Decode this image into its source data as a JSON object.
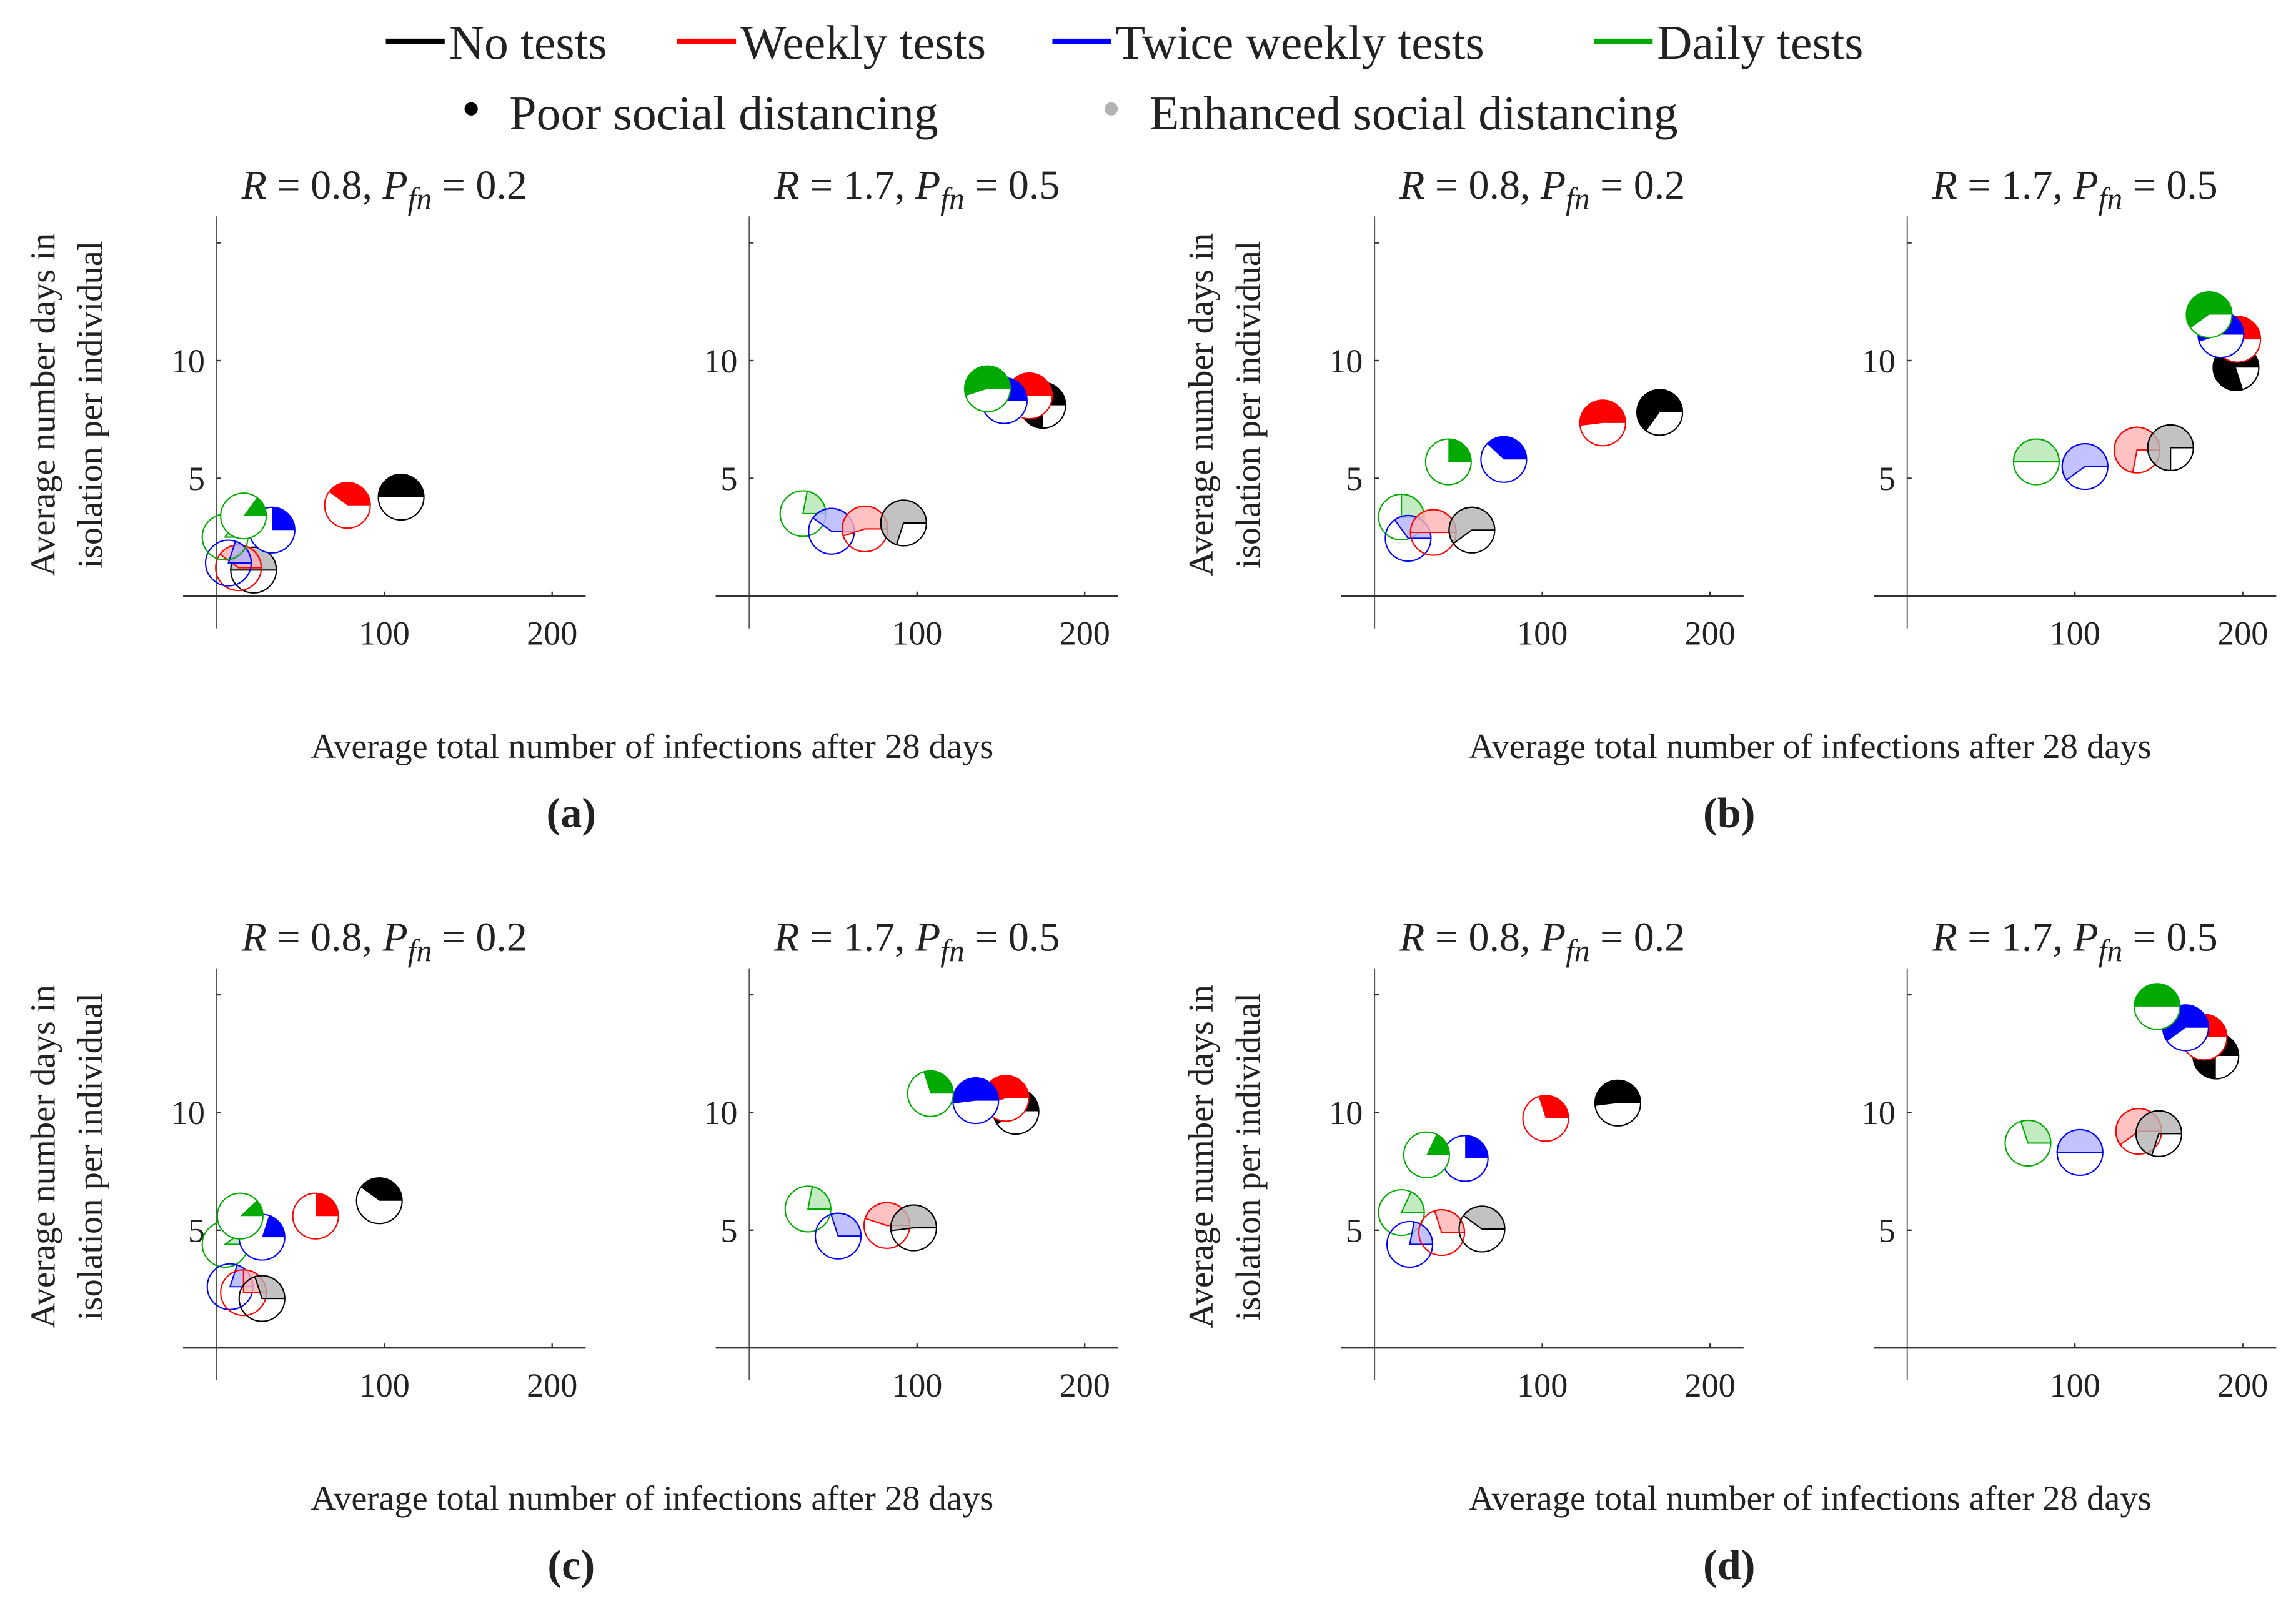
{
  "legend": {
    "tests": [
      {
        "label": "No tests",
        "color": "#000000"
      },
      {
        "label": "Weekly tests",
        "color": "#ff0000"
      },
      {
        "label": "Twice weekly tests",
        "color": "#0000ff"
      },
      {
        "label": "Daily tests",
        "color": "#00aa00"
      }
    ],
    "distancing": [
      {
        "label": "Poor social distancing",
        "color": "#000000"
      },
      {
        "label": "Enhanced social distancing",
        "color": "#b3b3b3"
      }
    ]
  },
  "light_colors": {
    "No tests": "#b3b3b3",
    "Weekly tests": "#ffb3b3",
    "Twice weekly tests": "#b3b3ff",
    "Daily tests": "#b3e6b3"
  },
  "chart_data": [
    {
      "label": "(a)",
      "xlabel": "Average total number of infections after 28 days",
      "ylabel": [
        "Average number days in",
        "isolation per individual"
      ],
      "panels": [
        {
          "type": "scatter",
          "title": [
            "R",
            " = 0.8, ",
            "P",
            "fn",
            " = 0.2"
          ],
          "xlim": [
            -20,
            220
          ],
          "ylim": [
            0,
            16
          ],
          "xticks": [
            100,
            200
          ],
          "yticks": [
            5,
            10
          ],
          "points": [
            {
              "test": "No tests",
              "distancing": "Enhanced",
              "x": 22,
              "y": 1.1,
              "fraction": 0.5
            },
            {
              "test": "Weekly tests",
              "distancing": "Enhanced",
              "x": 13,
              "y": 1.2,
              "fraction": 0.4
            },
            {
              "test": "Twice weekly tests",
              "distancing": "Enhanced",
              "x": 7,
              "y": 1.4,
              "fraction": 0.2
            },
            {
              "test": "Daily tests",
              "distancing": "Enhanced",
              "x": 5,
              "y": 2.5,
              "fraction": 0.15
            },
            {
              "test": "No tests",
              "distancing": "Poor",
              "x": 110,
              "y": 4.2,
              "fraction": 0.5
            },
            {
              "test": "Weekly tests",
              "distancing": "Poor",
              "x": 78,
              "y": 3.85,
              "fraction": 0.4
            },
            {
              "test": "Twice weekly tests",
              "distancing": "Poor",
              "x": 33,
              "y": 2.8,
              "fraction": 0.25
            },
            {
              "test": "Daily tests",
              "distancing": "Poor",
              "x": 16,
              "y": 3.4,
              "fraction": 0.15
            }
          ]
        },
        {
          "type": "scatter",
          "title": [
            "R",
            " = 1.7, ",
            "P",
            "fn",
            " = 0.5"
          ],
          "xlim": [
            -20,
            220
          ],
          "ylim": [
            0,
            16
          ],
          "xticks": [
            100,
            200
          ],
          "yticks": [
            5,
            10
          ],
          "points": [
            {
              "test": "Daily tests",
              "distancing": "Enhanced",
              "x": 32,
              "y": 3.5,
              "fraction": 0.22
            },
            {
              "test": "Twice weekly tests",
              "distancing": "Enhanced",
              "x": 49,
              "y": 2.75,
              "fraction": 0.4
            },
            {
              "test": "Weekly tests",
              "distancing": "Enhanced",
              "x": 69,
              "y": 2.85,
              "fraction": 0.55
            },
            {
              "test": "No tests",
              "distancing": "Enhanced",
              "x": 92,
              "y": 3.1,
              "fraction": 0.7
            },
            {
              "test": "No tests",
              "distancing": "Poor",
              "x": 175,
              "y": 8.1,
              "fraction": 0.75
            },
            {
              "test": "Weekly tests",
              "distancing": "Poor",
              "x": 167,
              "y": 8.5,
              "fraction": 0.5
            },
            {
              "test": "Twice weekly tests",
              "distancing": "Poor",
              "x": 152,
              "y": 8.3,
              "fraction": 0.55
            },
            {
              "test": "Daily tests",
              "distancing": "Poor",
              "x": 142,
              "y": 8.8,
              "fraction": 0.55
            }
          ]
        }
      ]
    },
    {
      "label": "(b)",
      "xlabel": "Average total number of infections after 28 days",
      "ylabel": [
        "Average number days in",
        "isolation per individual"
      ],
      "panels": [
        {
          "type": "scatter",
          "title": [
            "R",
            " = 0.8, ",
            "P",
            "fn",
            " = 0.2"
          ],
          "xlim": [
            -20,
            220
          ],
          "ylim": [
            0,
            16
          ],
          "xticks": [
            100,
            200
          ],
          "yticks": [
            5,
            10
          ],
          "points": [
            {
              "test": "Daily tests",
              "distancing": "Enhanced",
              "x": 16,
              "y": 3.35,
              "fraction": 0.25
            },
            {
              "test": "Twice weekly tests",
              "distancing": "Enhanced",
              "x": 20,
              "y": 2.45,
              "fraction": 0.35
            },
            {
              "test": "Weekly tests",
              "distancing": "Enhanced",
              "x": 35,
              "y": 2.7,
              "fraction": 0.5
            },
            {
              "test": "No tests",
              "distancing": "Enhanced",
              "x": 58,
              "y": 2.8,
              "fraction": 0.6
            },
            {
              "test": "No tests",
              "distancing": "Poor",
              "x": 170,
              "y": 7.8,
              "fraction": 0.65
            },
            {
              "test": "Weekly tests",
              "distancing": "Poor",
              "x": 136,
              "y": 7.35,
              "fraction": 0.52
            },
            {
              "test": "Twice weekly tests",
              "distancing": "Poor",
              "x": 77,
              "y": 5.8,
              "fraction": 0.38
            },
            {
              "test": "Daily tests",
              "distancing": "Poor",
              "x": 44,
              "y": 5.7,
              "fraction": 0.25
            }
          ]
        },
        {
          "type": "scatter",
          "title": [
            "R",
            " = 1.7, ",
            "P",
            "fn",
            " = 0.5"
          ],
          "xlim": [
            -20,
            220
          ],
          "ylim": [
            0,
            16
          ],
          "xticks": [
            100,
            200
          ],
          "yticks": [
            5,
            10
          ],
          "points": [
            {
              "test": "Daily tests",
              "distancing": "Enhanced",
              "x": 77,
              "y": 5.7,
              "fraction": 0.5
            },
            {
              "test": "Twice weekly tests",
              "distancing": "Enhanced",
              "x": 106,
              "y": 5.5,
              "fraction": 0.6
            },
            {
              "test": "Weekly tests",
              "distancing": "Enhanced",
              "x": 137,
              "y": 6.2,
              "fraction": 0.72
            },
            {
              "test": "No tests",
              "distancing": "Enhanced",
              "x": 157,
              "y": 6.3,
              "fraction": 0.75
            },
            {
              "test": "No tests",
              "distancing": "Poor",
              "x": 196,
              "y": 9.7,
              "fraction": 0.8
            },
            {
              "test": "Weekly tests",
              "distancing": "Poor",
              "x": 197,
              "y": 10.9,
              "fraction": 0.5
            },
            {
              "test": "Twice weekly tests",
              "distancing": "Poor",
              "x": 187,
              "y": 11.1,
              "fraction": 0.55
            },
            {
              "test": "Daily tests",
              "distancing": "Poor",
              "x": 180,
              "y": 11.95,
              "fraction": 0.6
            }
          ]
        }
      ]
    },
    {
      "label": "(c)",
      "xlabel": "Average total number of infections after 28 days",
      "ylabel": [
        "Average number days in",
        "isolation per individual"
      ],
      "panels": [
        {
          "type": "scatter",
          "title": [
            "R",
            " = 0.8, ",
            "P",
            "fn",
            " = 0.2"
          ],
          "xlim": [
            -20,
            220
          ],
          "ylim": [
            0,
            16
          ],
          "xticks": [
            100,
            200
          ],
          "yticks": [
            5,
            10
          ],
          "points": [
            {
              "test": "Daily tests",
              "distancing": "Enhanced",
              "x": 5,
              "y": 4.4,
              "fraction": 0.1
            },
            {
              "test": "Twice weekly tests",
              "distancing": "Enhanced",
              "x": 8,
              "y": 2.6,
              "fraction": 0.2
            },
            {
              "test": "Weekly tests",
              "distancing": "Enhanced",
              "x": 16,
              "y": 2.35,
              "fraction": 0.25
            },
            {
              "test": "No tests",
              "distancing": "Enhanced",
              "x": 27,
              "y": 2.1,
              "fraction": 0.3
            },
            {
              "test": "No tests",
              "distancing": "Poor",
              "x": 97,
              "y": 6.25,
              "fraction": 0.4
            },
            {
              "test": "Weekly tests",
              "distancing": "Poor",
              "x": 59,
              "y": 5.6,
              "fraction": 0.25
            },
            {
              "test": "Twice weekly tests",
              "distancing": "Poor",
              "x": 27,
              "y": 4.7,
              "fraction": 0.2
            },
            {
              "test": "Daily tests",
              "distancing": "Poor",
              "x": 14,
              "y": 5.6,
              "fraction": 0.12
            }
          ]
        },
        {
          "type": "scatter",
          "title": [
            "R",
            " = 1.7, ",
            "P",
            "fn",
            " = 0.5"
          ],
          "xlim": [
            -20,
            220
          ],
          "ylim": [
            0,
            16
          ],
          "xticks": [
            100,
            200
          ],
          "yticks": [
            5,
            10
          ],
          "points": [
            {
              "test": "Daily tests",
              "distancing": "Enhanced",
              "x": 35,
              "y": 5.9,
              "fraction": 0.22
            },
            {
              "test": "Twice weekly tests",
              "distancing": "Enhanced",
              "x": 53,
              "y": 4.75,
              "fraction": 0.3
            },
            {
              "test": "Weekly tests",
              "distancing": "Enhanced",
              "x": 82,
              "y": 5.2,
              "fraction": 0.45
            },
            {
              "test": "No tests",
              "distancing": "Enhanced",
              "x": 98,
              "y": 5.1,
              "fraction": 0.52
            },
            {
              "test": "No tests",
              "distancing": "Poor",
              "x": 159,
              "y": 10.05,
              "fraction": 0.6
            },
            {
              "test": "Weekly tests",
              "distancing": "Poor",
              "x": 153,
              "y": 10.6,
              "fraction": 0.55
            },
            {
              "test": "Twice weekly tests",
              "distancing": "Poor",
              "x": 135,
              "y": 10.5,
              "fraction": 0.52
            },
            {
              "test": "Daily tests",
              "distancing": "Poor",
              "x": 108,
              "y": 10.8,
              "fraction": 0.3
            }
          ]
        }
      ]
    },
    {
      "label": "(d)",
      "xlabel": "Average total number of infections after 28 days",
      "ylabel": [
        "Average number days in",
        "isolation per individual"
      ],
      "panels": [
        {
          "type": "scatter",
          "title": [
            "R",
            " = 0.8, ",
            "P",
            "fn",
            " = 0.2"
          ],
          "xlim": [
            -20,
            220
          ],
          "ylim": [
            0,
            16
          ],
          "xticks": [
            100,
            200
          ],
          "yticks": [
            5,
            10
          ],
          "points": [
            {
              "test": "Daily tests",
              "distancing": "Enhanced",
              "x": 16,
              "y": 5.75,
              "fraction": 0.18
            },
            {
              "test": "Twice weekly tests",
              "distancing": "Enhanced",
              "x": 21,
              "y": 4.4,
              "fraction": 0.22
            },
            {
              "test": "Weekly tests",
              "distancing": "Enhanced",
              "x": 40,
              "y": 4.9,
              "fraction": 0.3
            },
            {
              "test": "No tests",
              "distancing": "Enhanced",
              "x": 64,
              "y": 5.05,
              "fraction": 0.4
            },
            {
              "test": "No tests",
              "distancing": "Poor",
              "x": 145,
              "y": 10.4,
              "fraction": 0.52
            },
            {
              "test": "Weekly tests",
              "distancing": "Poor",
              "x": 102,
              "y": 9.75,
              "fraction": 0.3
            },
            {
              "test": "Twice weekly tests",
              "distancing": "Poor",
              "x": 54,
              "y": 8.05,
              "fraction": 0.25
            },
            {
              "test": "Daily tests",
              "distancing": "Poor",
              "x": 31,
              "y": 8.2,
              "fraction": 0.18
            }
          ]
        },
        {
          "type": "scatter",
          "title": [
            "R",
            " = 1.7, ",
            "P",
            "fn",
            " = 0.5"
          ],
          "xlim": [
            -20,
            220
          ],
          "ylim": [
            0,
            16
          ],
          "xticks": [
            100,
            200
          ],
          "yticks": [
            5,
            10
          ],
          "points": [
            {
              "test": "Daily tests",
              "distancing": "Enhanced",
              "x": 72,
              "y": 8.7,
              "fraction": 0.3
            },
            {
              "test": "Twice weekly tests",
              "distancing": "Enhanced",
              "x": 103,
              "y": 8.3,
              "fraction": 0.5
            },
            {
              "test": "Weekly tests",
              "distancing": "Enhanced",
              "x": 138,
              "y": 9.2,
              "fraction": 0.6
            },
            {
              "test": "No tests",
              "distancing": "Enhanced",
              "x": 150,
              "y": 9.1,
              "fraction": 0.7
            },
            {
              "test": "No tests",
              "distancing": "Poor",
              "x": 184,
              "y": 12.4,
              "fraction": 0.75
            },
            {
              "test": "Weekly tests",
              "distancing": "Poor",
              "x": 177,
              "y": 13.2,
              "fraction": 0.5
            },
            {
              "test": "Twice weekly tests",
              "distancing": "Poor",
              "x": 166,
              "y": 13.6,
              "fraction": 0.6
            },
            {
              "test": "Daily tests",
              "distancing": "Poor",
              "x": 149,
              "y": 14.5,
              "fraction": 0.5
            }
          ]
        }
      ]
    }
  ]
}
